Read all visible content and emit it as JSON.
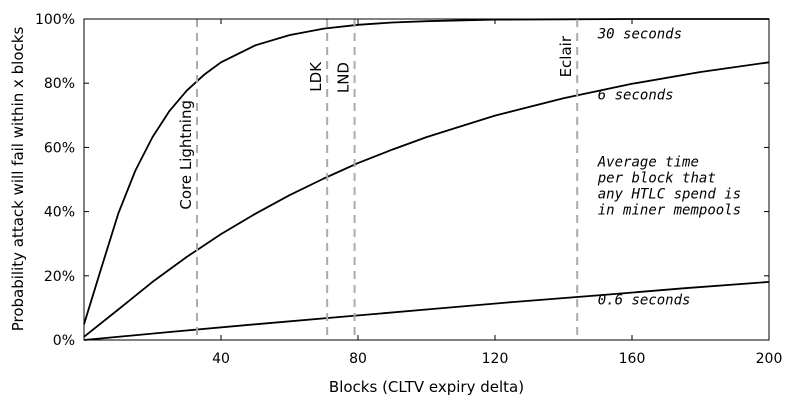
{
  "chart_data": {
    "type": "line",
    "xlabel": "Blocks (CLTV expiry delta)",
    "ylabel": "Probability attack will fail within x blocks",
    "xlim": [
      0,
      200
    ],
    "ylim": [
      0,
      100
    ],
    "x_ticks": [
      40,
      80,
      120,
      160,
      200
    ],
    "y_ticks": [
      0,
      20,
      40,
      60,
      80,
      100
    ],
    "y_tick_labels": [
      "0%",
      "20%",
      "40%",
      "60%",
      "80%",
      "100%"
    ],
    "grid": false,
    "series": [
      {
        "name": "30 seconds",
        "color": "#000000",
        "x": [
          0,
          5,
          10,
          15,
          20,
          25,
          30,
          35,
          40,
          50,
          60,
          70,
          80,
          90,
          100,
          120,
          140,
          160,
          180,
          200
        ],
        "y": [
          4.9,
          22.2,
          39.4,
          52.8,
          63.2,
          71.4,
          77.7,
          82.6,
          86.5,
          91.8,
          95.0,
          97.0,
          98.2,
          98.9,
          99.3,
          99.8,
          99.9,
          100.0,
          100.0,
          100.0
        ]
      },
      {
        "name": "6 seconds",
        "color": "#000000",
        "x": [
          0,
          10,
          20,
          30,
          40,
          50,
          60,
          70,
          80,
          90,
          100,
          120,
          140,
          160,
          180,
          200
        ],
        "y": [
          1.0,
          9.5,
          18.1,
          25.9,
          33.0,
          39.3,
          45.1,
          50.3,
          55.1,
          59.3,
          63.2,
          69.9,
          75.3,
          79.8,
          83.5,
          86.5
        ]
      },
      {
        "name": "0.6 seconds",
        "color": "#000000",
        "x": [
          0,
          25,
          50,
          75,
          100,
          125,
          150,
          175,
          200
        ],
        "y": [
          0.0,
          2.5,
          4.9,
          7.2,
          9.5,
          11.8,
          13.9,
          16.1,
          18.1
        ]
      }
    ],
    "vertical_lines": [
      {
        "x": 33,
        "label": "Core Lightning"
      },
      {
        "x": 71,
        "label": "LDK"
      },
      {
        "x": 79,
        "label": "LND"
      },
      {
        "x": 144,
        "label": "Eclair"
      }
    ],
    "annotations": [
      {
        "text": "30 seconds",
        "x": 150,
        "y": 94
      },
      {
        "text": "6 seconds",
        "x": 150,
        "y": 75
      },
      {
        "lines": [
          "Average time",
          "per block that",
          "any HTLC spend is",
          "in miner mempools"
        ],
        "x": 150,
        "y": 54
      },
      {
        "text": "0.6 seconds",
        "x": 150,
        "y": 11
      }
    ]
  }
}
